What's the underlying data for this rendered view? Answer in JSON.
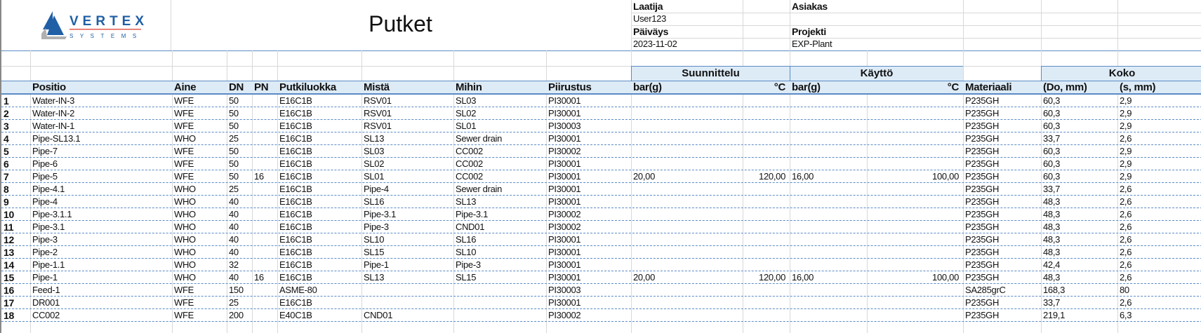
{
  "logo": {
    "brand": "VERTEX",
    "sub": "SYSTEMS",
    "color": "#1f5fa6",
    "accent": "#e05a4e"
  },
  "title": "Putket",
  "info": {
    "author_label": "Laatija",
    "author": "User123",
    "client_label": "Asiakas",
    "client": "",
    "date_label": "Päiväys",
    "date": "2023-11-02",
    "project_label": "Projekti",
    "project": "EXP-Plant"
  },
  "groups": {
    "design": "Suunnittelu",
    "operation": "Käyttö",
    "size": "Koko"
  },
  "columns": [
    "",
    "Positio",
    "Aine",
    "DN",
    "PN",
    "Putkiluokka",
    "Mistä",
    "Mihin",
    "Piirustus",
    "bar(g)",
    "°C",
    "bar(g)",
    "°C",
    "Materiaali",
    "(Do, mm)",
    "(s, mm)"
  ],
  "colors": {
    "header_bg": "#ddebf7",
    "border": "#5b8bc5"
  },
  "rows": [
    [
      "1",
      "Water-IN-3",
      "WFE",
      "50",
      "",
      "E16C1B",
      "RSV01",
      "SL03",
      "PI30001",
      "",
      "",
      "",
      "",
      "P235GH",
      "60,3",
      "2,9"
    ],
    [
      "2",
      "Water-IN-2",
      "WFE",
      "50",
      "",
      "E16C1B",
      "RSV01",
      "SL02",
      "PI30001",
      "",
      "",
      "",
      "",
      "P235GH",
      "60,3",
      "2,9"
    ],
    [
      "3",
      "Water-IN-1",
      "WFE",
      "50",
      "",
      "E16C1B",
      "RSV01",
      "SL01",
      "PI30003",
      "",
      "",
      "",
      "",
      "P235GH",
      "60,3",
      "2,9"
    ],
    [
      "4",
      "Pipe-SL13.1",
      "WHO",
      "25",
      "",
      "E16C1B",
      "SL13",
      "Sewer drain",
      "PI30001",
      "",
      "",
      "",
      "",
      "P235GH",
      "33,7",
      "2,6"
    ],
    [
      "5",
      "Pipe-7",
      "WFE",
      "50",
      "",
      "E16C1B",
      "SL03",
      "CC002",
      "PI30002",
      "",
      "",
      "",
      "",
      "P235GH",
      "60,3",
      "2,9"
    ],
    [
      "6",
      "Pipe-6",
      "WFE",
      "50",
      "",
      "E16C1B",
      "SL02",
      "CC002",
      "PI30001",
      "",
      "",
      "",
      "",
      "P235GH",
      "60,3",
      "2,9"
    ],
    [
      "7",
      "Pipe-5",
      "WFE",
      "50",
      "16",
      "E16C1B",
      "SL01",
      "CC002",
      "PI30001",
      "20,00",
      "120,00",
      "16,00",
      "100,00",
      "P235GH",
      "60,3",
      "2,9"
    ],
    [
      "8",
      "Pipe-4.1",
      "WHO",
      "25",
      "",
      "E16C1B",
      "Pipe-4",
      "Sewer drain",
      "PI30001",
      "",
      "",
      "",
      "",
      "P235GH",
      "33,7",
      "2,6"
    ],
    [
      "9",
      "Pipe-4",
      "WHO",
      "40",
      "",
      "E16C1B",
      "SL16",
      "SL13",
      "PI30001",
      "",
      "",
      "",
      "",
      "P235GH",
      "48,3",
      "2,6"
    ],
    [
      "10",
      "Pipe-3.1.1",
      "WHO",
      "40",
      "",
      "E16C1B",
      "Pipe-3.1",
      "Pipe-3.1",
      "PI30002",
      "",
      "",
      "",
      "",
      "P235GH",
      "48,3",
      "2,6"
    ],
    [
      "11",
      "Pipe-3.1",
      "WHO",
      "40",
      "",
      "E16C1B",
      "Pipe-3",
      "CND01",
      "PI30002",
      "",
      "",
      "",
      "",
      "P235GH",
      "48,3",
      "2,6"
    ],
    [
      "12",
      "Pipe-3",
      "WHO",
      "40",
      "",
      "E16C1B",
      "SL10",
      "SL16",
      "PI30001",
      "",
      "",
      "",
      "",
      "P235GH",
      "48,3",
      "2,6"
    ],
    [
      "13",
      "Pipe-2",
      "WHO",
      "40",
      "",
      "E16C1B",
      "SL15",
      "SL10",
      "PI30001",
      "",
      "",
      "",
      "",
      "P235GH",
      "48,3",
      "2,6"
    ],
    [
      "14",
      "Pipe-1.1",
      "WHO",
      "32",
      "",
      "E16C1B",
      "Pipe-1",
      "Pipe-3",
      "PI30001",
      "",
      "",
      "",
      "",
      "P235GH",
      "42,4",
      "2,6"
    ],
    [
      "15",
      "Pipe-1",
      "WHO",
      "40",
      "16",
      "E16C1B",
      "SL13",
      "SL15",
      "PI30001",
      "20,00",
      "120,00",
      "16,00",
      "100,00",
      "P235GH",
      "48,3",
      "2,6"
    ],
    [
      "16",
      "Feed-1",
      "WFE",
      "150",
      "",
      "ASME-80",
      "",
      "",
      "PI30003",
      "",
      "",
      "",
      "",
      "SA285grC",
      "168,3",
      "80"
    ],
    [
      "17",
      "DR001",
      "WFE",
      "25",
      "",
      "E16C1B",
      "",
      "",
      "PI30001",
      "",
      "",
      "",
      "",
      "P235GH",
      "33,7",
      "2,6"
    ],
    [
      "18",
      "CC002",
      "WFE",
      "200",
      "",
      "E40C1B",
      "CND01",
      "",
      "PI30002",
      "",
      "",
      "",
      "",
      "P235GH",
      "219,1",
      "6,3"
    ]
  ]
}
